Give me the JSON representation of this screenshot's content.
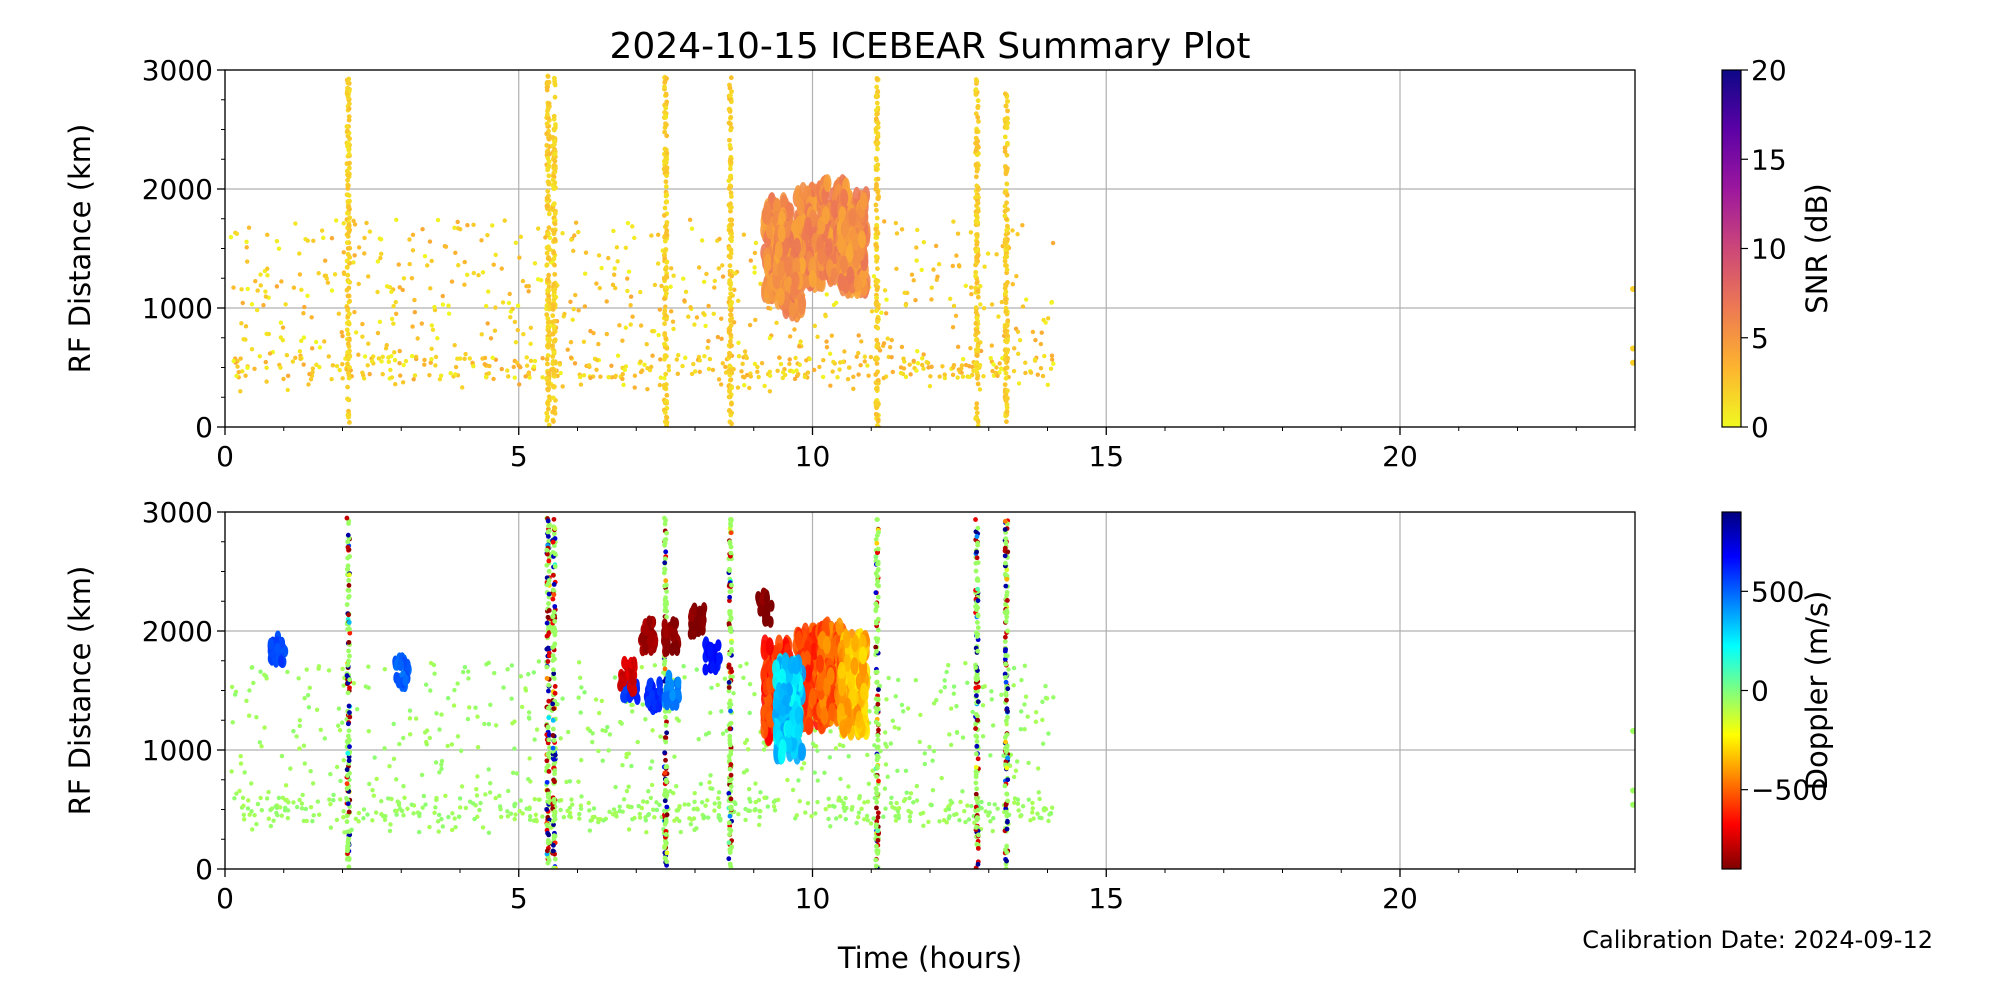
{
  "figure": {
    "title": "2024-10-15 ICEBEAR Summary Plot",
    "xlabel": "Time (hours)",
    "calibration": "Calibration Date: 2024-09-12"
  },
  "chart_data": [
    {
      "type": "scatter",
      "panel": "top",
      "xlabel": "",
      "ylabel": "RF Distance (km)",
      "xlim": [
        0,
        24
      ],
      "ylim": [
        0,
        3000
      ],
      "x_ticks": [
        0,
        5,
        10,
        15,
        20
      ],
      "y_ticks": [
        0,
        1000,
        2000,
        3000
      ],
      "grid": true,
      "colorbar": {
        "label": "SNR (dB)",
        "range": [
          0,
          20
        ],
        "ticks": [
          0,
          5,
          10,
          15,
          20
        ],
        "colormap": "plasma_r",
        "stops": [
          "#f0f921",
          "#fdb42f",
          "#ed7953",
          "#cc4778",
          "#9c179e",
          "#5c01a6",
          "#0d0887"
        ]
      },
      "series": [
        {
          "kind": "background-echoes",
          "x_range": [
            0.1,
            14.1
          ],
          "y_range": [
            300,
            1750
          ],
          "snr_range": [
            0,
            4
          ]
        },
        {
          "kind": "vertical-streaks",
          "x": [
            2.1,
            5.5,
            5.6,
            8.6,
            7.5,
            11.1,
            12.8,
            13.3
          ],
          "y_range": [
            0,
            2950
          ],
          "snr": 1
        },
        {
          "kind": "auroral-clusters",
          "x": [
            9.4,
            9.95,
            10.35,
            9.6,
            10.7
          ],
          "y_center": [
            1500,
            1600,
            1650,
            1350,
            1550
          ],
          "snr": 4
        },
        {
          "kind": "isolated-points",
          "x": [
            24,
            24,
            24
          ],
          "y": [
            1160,
            660,
            540
          ],
          "snr": 2
        }
      ]
    },
    {
      "type": "scatter",
      "panel": "bottom",
      "xlabel": "Time (hours)",
      "ylabel": "RF Distance (km)",
      "xlim": [
        0,
        24
      ],
      "ylim": [
        0,
        3000
      ],
      "x_ticks": [
        0,
        5,
        10,
        15,
        20
      ],
      "y_ticks": [
        0,
        1000,
        2000,
        3000
      ],
      "grid": true,
      "colorbar": {
        "label": "Doppler (m/s)",
        "range": [
          -900,
          900
        ],
        "ticks": [
          -500,
          0,
          500
        ],
        "colormap": "jet_r",
        "stops": [
          "#7f0000",
          "#ff0000",
          "#ff7f00",
          "#ffff00",
          "#7fff7f",
          "#00ffff",
          "#007fff",
          "#0000ff",
          "#00007f"
        ]
      },
      "series": [
        {
          "kind": "background-echoes",
          "x_range": [
            0.1,
            14.1
          ],
          "y_range": [
            300,
            1750
          ],
          "doppler": -50
        },
        {
          "kind": "vertical-streaks",
          "x": [
            2.1,
            5.5,
            5.6,
            8.6,
            7.5,
            11.1,
            12.8,
            13.3
          ],
          "y_range": [
            0,
            2950
          ],
          "doppler_range": [
            -900,
            900
          ]
        },
        {
          "kind": "auroral-clusters",
          "x": [
            9.4,
            9.95,
            10.35,
            9.6,
            10.7
          ],
          "y_center": [
            1500,
            1600,
            1650,
            1350,
            1550
          ],
          "doppler": [
            -600,
            -550,
            -500,
            300,
            -350
          ]
        },
        {
          "kind": "westward-flow",
          "x": [
            6.9,
            7.3,
            7.6,
            8.3,
            9.5,
            3.0,
            0.9
          ],
          "y": [
            1550,
            1450,
            1500,
            1800,
            1400,
            1650,
            1830
          ],
          "doppler": [
            600,
            600,
            450,
            650,
            350,
            500,
            550
          ]
        },
        {
          "kind": "eastward-flow",
          "x": [
            6.85,
            7.2,
            7.6,
            8.05,
            9.2
          ],
          "y": [
            1620,
            1960,
            1950,
            2080,
            2200
          ],
          "doppler": [
            -750,
            -850,
            -880,
            -900,
            -900
          ]
        },
        {
          "kind": "isolated-points",
          "x": [
            24,
            24,
            24
          ],
          "y": [
            1160,
            660,
            540
          ],
          "doppler": -50
        }
      ]
    }
  ]
}
